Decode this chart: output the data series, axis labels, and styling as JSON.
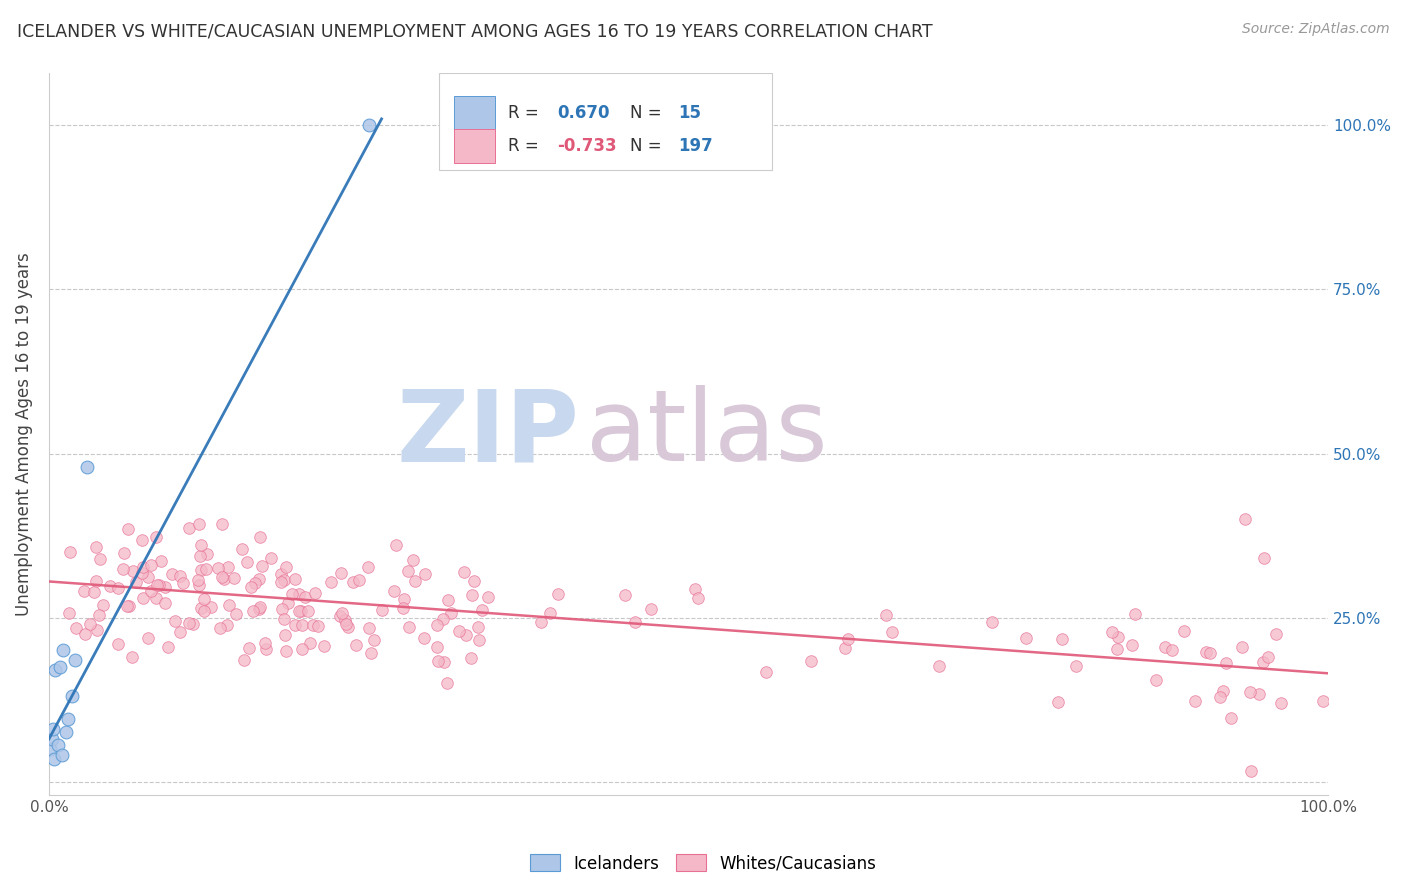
{
  "title": "ICELANDER VS WHITE/CAUCASIAN UNEMPLOYMENT AMONG AGES 16 TO 19 YEARS CORRELATION CHART",
  "source": "Source: ZipAtlas.com",
  "ylabel": "Unemployment Among Ages 16 to 19 years",
  "xlim": [
    0.0,
    1.0
  ],
  "ylim": [
    -0.02,
    1.08
  ],
  "x_ticks": [
    0.0,
    0.1,
    0.2,
    0.3,
    0.4,
    0.5,
    0.6,
    0.7,
    0.8,
    0.9,
    1.0
  ],
  "y_ticks": [
    0.0,
    0.25,
    0.5,
    0.75,
    1.0
  ],
  "icelander_R": 0.67,
  "icelander_N": 15,
  "white_R": -0.733,
  "white_N": 197,
  "icelander_color": "#aec6e8",
  "icelander_edge_color": "#5b9bd5",
  "icelander_line_color": "#2e75b6",
  "white_color": "#f4b8c8",
  "white_edge_color": "#e87095",
  "white_line_color": "#e05878",
  "background_color": "#ffffff",
  "grid_color": "#c8c8c8",
  "watermark_zip_color": "#c8d8ee",
  "watermark_atlas_color": "#d8c8d8",
  "legend_text_color": "#333333",
  "legend_value_color": "#2e75b6",
  "legend_neg_color": "#e05878",
  "right_tick_color": "#2e75b6",
  "seed": 42,
  "icelander_x": [
    0.001,
    0.002,
    0.003,
    0.004,
    0.005,
    0.007,
    0.009,
    0.01,
    0.011,
    0.013,
    0.015,
    0.018,
    0.02,
    0.03,
    0.25
  ],
  "icelander_y": [
    0.05,
    0.065,
    0.08,
    0.035,
    0.17,
    0.055,
    0.175,
    0.04,
    0.2,
    0.075,
    0.095,
    0.13,
    0.185,
    0.48,
    1.0
  ],
  "white_line_x0": 0.0,
  "white_line_y0": 0.305,
  "white_line_x1": 1.0,
  "white_line_y1": 0.165,
  "ice_line_x0": 0.0,
  "ice_line_y0": 0.065,
  "ice_line_x1": 0.26,
  "ice_line_y1": 1.01
}
